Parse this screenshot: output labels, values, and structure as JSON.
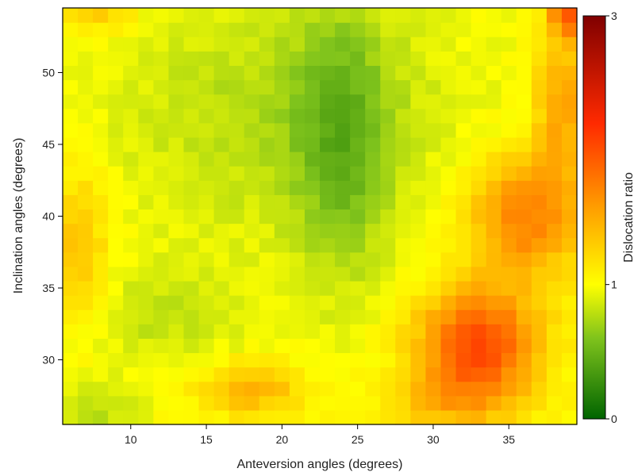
{
  "chart_data": {
    "type": "heatmap",
    "xlabel": "Anteversion angles (degrees)",
    "ylabel": "Inclination angles (degrees)",
    "colorbar_label": "Dislocation ratio",
    "x_range": [
      5.5,
      39.5
    ],
    "y_range": [
      25.5,
      54.5
    ],
    "x_ticks": [
      10,
      15,
      20,
      25,
      30,
      35
    ],
    "y_ticks": [
      30,
      35,
      40,
      45,
      50
    ],
    "color_range": [
      0,
      3
    ],
    "color_ticks": [
      0,
      1,
      3
    ],
    "colorscale": [
      {
        "v": 0,
        "color": "#006400"
      },
      {
        "v": 0.6,
        "color": "#7fc31c"
      },
      {
        "v": 1,
        "color": "#ffff00"
      },
      {
        "v": 1.6,
        "color": "#ff9900"
      },
      {
        "v": 2.2,
        "color": "#ff2a00"
      },
      {
        "v": 3,
        "color": "#800000"
      }
    ],
    "grid": false
  }
}
